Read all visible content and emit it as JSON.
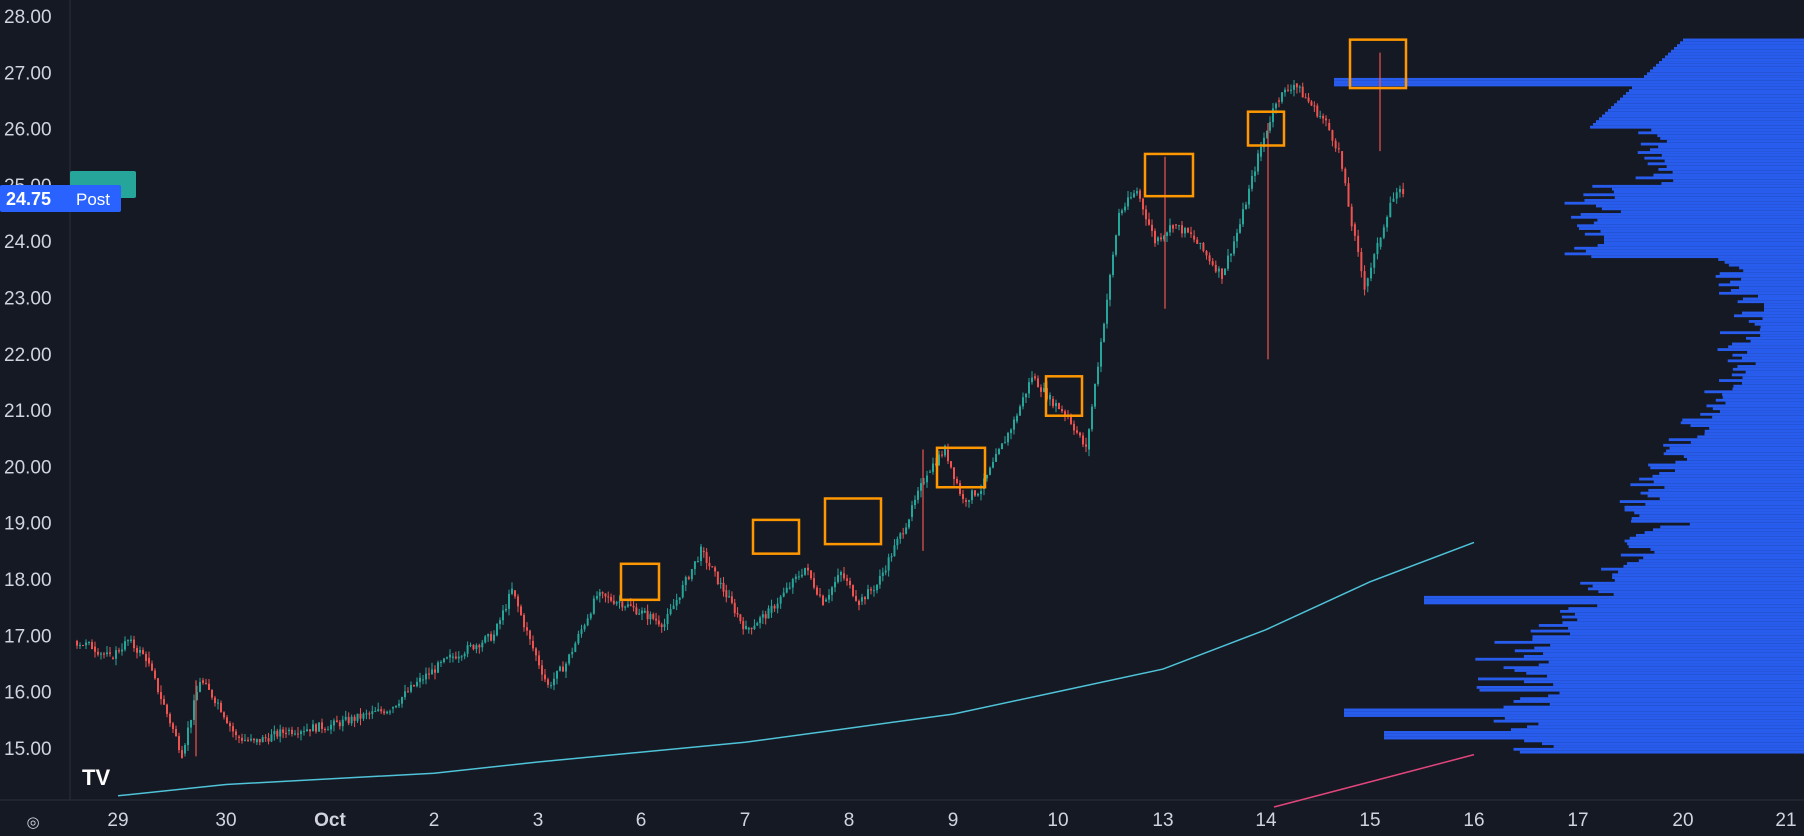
{
  "chart_data": {
    "type": "candlestick",
    "y_ticks": [
      "28.00",
      "27.00",
      "26.00",
      "25.00",
      "24.00",
      "23.00",
      "22.00",
      "21.00",
      "20.00",
      "19.00",
      "18.00",
      "17.00",
      "16.00",
      "15.00"
    ],
    "ylim": [
      14.0,
      28.0
    ],
    "x_ticks": [
      "29",
      "30",
      "Oct",
      "2",
      "3",
      "6",
      "7",
      "8",
      "9",
      "10",
      "13",
      "14",
      "15",
      "16",
      "17",
      "20",
      "21"
    ],
    "colors": {
      "up": "#26a69a",
      "down": "#ef5350",
      "moving_average": "#4fc3d8",
      "lower_line": "#e0457b",
      "volume_profile": "#2962ff",
      "highlight_box": "#ff9800",
      "price_label_bg": "#2962ff",
      "ticker_label_bg": "#26a69a",
      "background": "#151924"
    },
    "price_label": {
      "value": "24.75",
      "tag": "Post"
    },
    "ticker_label": "",
    "price_path": [
      [
        "29",
        16.9
      ],
      [
        "29",
        16.8
      ],
      [
        "29",
        16.6
      ],
      [
        "29",
        16.9
      ],
      [
        "29",
        16.6
      ],
      [
        "30",
        14.9
      ],
      [
        "30",
        16.2
      ],
      [
        "30",
        15.8
      ],
      [
        "30",
        15.2
      ],
      [
        "30",
        15.1
      ],
      [
        "Oct",
        15.3
      ],
      [
        "Oct",
        15.4
      ],
      [
        "2",
        15.7
      ],
      [
        "2",
        16.2
      ],
      [
        "2",
        16.6
      ],
      [
        "3",
        17.0
      ],
      [
        "3",
        17.8
      ],
      [
        "3",
        16.9
      ],
      [
        "3",
        16.1
      ],
      [
        "3",
        16.5
      ],
      [
        "6",
        17.7
      ],
      [
        "6",
        17.6
      ],
      [
        "6",
        17.4
      ],
      [
        "6",
        17.2
      ],
      [
        "7",
        18.5
      ],
      [
        "7",
        17.8
      ],
      [
        "7",
        17.1
      ],
      [
        "7",
        17.4
      ],
      [
        "8",
        18.2
      ],
      [
        "8",
        17.6
      ],
      [
        "8",
        18.1
      ],
      [
        "8",
        17.6
      ],
      [
        "8",
        17.9
      ],
      [
        "9",
        19.1
      ],
      [
        "9",
        19.9
      ],
      [
        "9",
        20.3
      ],
      [
        "9",
        19.4
      ],
      [
        "9",
        19.6
      ],
      [
        "10",
        20.8
      ],
      [
        "10",
        21.6
      ],
      [
        "10",
        21.2
      ],
      [
        "10",
        20.9
      ],
      [
        "10",
        20.3
      ],
      [
        "13",
        24.5
      ],
      [
        "13",
        24.9
      ],
      [
        "13",
        24.0
      ],
      [
        "13",
        24.3
      ],
      [
        "13",
        24.1
      ],
      [
        "14",
        23.4
      ],
      [
        "14",
        24.3
      ],
      [
        "14",
        25.5
      ],
      [
        "14",
        26.5
      ],
      [
        "14",
        26.8
      ],
      [
        "15",
        26.1
      ],
      [
        "15",
        25.6
      ],
      [
        "15",
        24.3
      ],
      [
        "15",
        23.2
      ],
      [
        "15",
        23.9
      ],
      [
        "15",
        24.7
      ],
      [
        "15",
        24.9
      ]
    ],
    "moving_average": [
      [
        "29",
        14.15
      ],
      [
        "30",
        14.35
      ],
      [
        "2",
        14.55
      ],
      [
        "3",
        14.75
      ],
      [
        "7",
        15.1
      ],
      [
        "8",
        15.35
      ],
      [
        "9",
        15.6
      ],
      [
        "10",
        16.0
      ],
      [
        "13",
        16.4
      ],
      [
        "14",
        17.1
      ],
      [
        "15",
        17.95
      ],
      [
        "16",
        18.65
      ]
    ],
    "highlighted_spikes": [
      "6",
      "7",
      "8",
      "9",
      "10",
      "13",
      "14",
      "15"
    ],
    "volume_profile_peaks": [
      26.8,
      24.0,
      22.8,
      17.6,
      15.6,
      15.2
    ]
  }
}
